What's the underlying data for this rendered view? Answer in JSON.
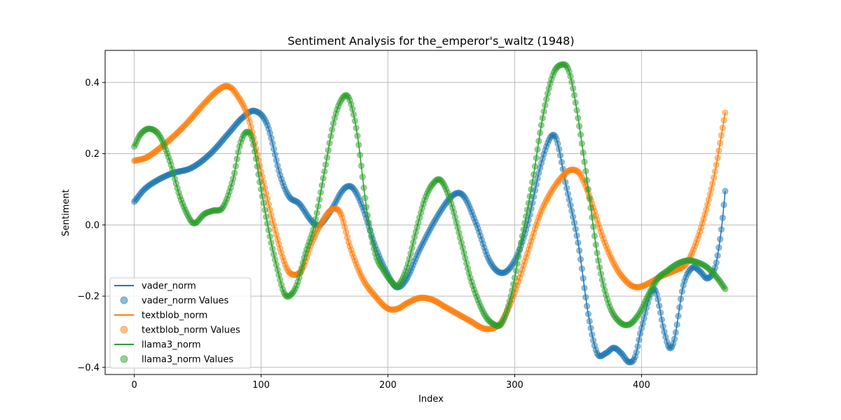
{
  "chart_data": {
    "type": "line",
    "title": "Sentiment Analysis for the_emperor's_waltz (1948)",
    "xlabel": "Index",
    "ylabel": "Sentiment",
    "xlim": [
      -23,
      491
    ],
    "ylim": [
      -0.42,
      0.49
    ],
    "xticks": [
      0,
      100,
      200,
      300,
      400
    ],
    "yticks": [
      -0.4,
      -0.2,
      0.0,
      0.2,
      0.4
    ],
    "xtick_labels": [
      "0",
      "100",
      "200",
      "300",
      "400"
    ],
    "ytick_labels": [
      "−0.4",
      "−0.2",
      "0.0",
      "0.2",
      "0.4"
    ],
    "grid": true,
    "legend_position": "lower-left",
    "x_range": [
      0,
      466
    ],
    "series": [
      {
        "name": "vader_norm",
        "points_label": "vader_norm Values",
        "color": "#1f77b4",
        "keypoints": [
          [
            0,
            0.065
          ],
          [
            8,
            0.1
          ],
          [
            18,
            0.125
          ],
          [
            30,
            0.145
          ],
          [
            45,
            0.16
          ],
          [
            60,
            0.2
          ],
          [
            75,
            0.26
          ],
          [
            85,
            0.3
          ],
          [
            95,
            0.32
          ],
          [
            105,
            0.28
          ],
          [
            115,
            0.14
          ],
          [
            122,
            0.08
          ],
          [
            130,
            0.06
          ],
          [
            140,
            0.01
          ],
          [
            146,
            0.0
          ],
          [
            155,
            0.04
          ],
          [
            165,
            0.1
          ],
          [
            172,
            0.105
          ],
          [
            180,
            0.05
          ],
          [
            190,
            -0.06
          ],
          [
            200,
            -0.14
          ],
          [
            207,
            -0.175
          ],
          [
            215,
            -0.15
          ],
          [
            225,
            -0.07
          ],
          [
            240,
            0.03
          ],
          [
            252,
            0.085
          ],
          [
            260,
            0.08
          ],
          [
            270,
            0.0
          ],
          [
            280,
            -0.1
          ],
          [
            290,
            -0.135
          ],
          [
            300,
            -0.1
          ],
          [
            310,
            0.0
          ],
          [
            320,
            0.16
          ],
          [
            328,
            0.245
          ],
          [
            333,
            0.24
          ],
          [
            340,
            0.12
          ],
          [
            350,
            -0.05
          ],
          [
            358,
            -0.25
          ],
          [
            365,
            -0.36
          ],
          [
            372,
            -0.36
          ],
          [
            378,
            -0.345
          ],
          [
            384,
            -0.36
          ],
          [
            390,
            -0.385
          ],
          [
            395,
            -0.37
          ],
          [
            400,
            -0.29
          ],
          [
            410,
            -0.18
          ],
          [
            418,
            -0.3
          ],
          [
            422,
            -0.345
          ],
          [
            426,
            -0.32
          ],
          [
            433,
            -0.17
          ],
          [
            440,
            -0.12
          ],
          [
            446,
            -0.13
          ],
          [
            452,
            -0.15
          ],
          [
            458,
            -0.12
          ],
          [
            462,
            -0.04
          ],
          [
            464,
            0.02
          ],
          [
            466,
            0.095
          ]
        ]
      },
      {
        "name": "textblob_norm",
        "points_label": "textblob_norm Values",
        "color": "#ff7f0e",
        "keypoints": [
          [
            0,
            0.18
          ],
          [
            10,
            0.19
          ],
          [
            25,
            0.23
          ],
          [
            40,
            0.28
          ],
          [
            55,
            0.34
          ],
          [
            65,
            0.375
          ],
          [
            73,
            0.39
          ],
          [
            80,
            0.37
          ],
          [
            90,
            0.3
          ],
          [
            100,
            0.15
          ],
          [
            110,
            0.0
          ],
          [
            120,
            -0.12
          ],
          [
            127,
            -0.14
          ],
          [
            133,
            -0.12
          ],
          [
            140,
            -0.05
          ],
          [
            150,
            0.02
          ],
          [
            157,
            0.045
          ],
          [
            163,
            0.03
          ],
          [
            170,
            -0.06
          ],
          [
            180,
            -0.15
          ],
          [
            190,
            -0.2
          ],
          [
            200,
            -0.235
          ],
          [
            208,
            -0.235
          ],
          [
            215,
            -0.22
          ],
          [
            225,
            -0.205
          ],
          [
            235,
            -0.21
          ],
          [
            245,
            -0.23
          ],
          [
            255,
            -0.25
          ],
          [
            265,
            -0.27
          ],
          [
            275,
            -0.29
          ],
          [
            283,
            -0.29
          ],
          [
            290,
            -0.27
          ],
          [
            300,
            -0.19
          ],
          [
            310,
            -0.08
          ],
          [
            320,
            0.03
          ],
          [
            330,
            0.1
          ],
          [
            340,
            0.145
          ],
          [
            346,
            0.155
          ],
          [
            352,
            0.14
          ],
          [
            360,
            0.07
          ],
          [
            370,
            -0.04
          ],
          [
            380,
            -0.12
          ],
          [
            390,
            -0.165
          ],
          [
            397,
            -0.175
          ],
          [
            405,
            -0.165
          ],
          [
            415,
            -0.145
          ],
          [
            425,
            -0.13
          ],
          [
            435,
            -0.11
          ],
          [
            442,
            -0.06
          ],
          [
            450,
            0.03
          ],
          [
            458,
            0.15
          ],
          [
            466,
            0.315
          ]
        ]
      },
      {
        "name": "llama3_norm",
        "points_label": "llama3_norm Values",
        "color": "#2ca02c",
        "keypoints": [
          [
            0,
            0.22
          ],
          [
            5,
            0.255
          ],
          [
            12,
            0.27
          ],
          [
            20,
            0.25
          ],
          [
            28,
            0.18
          ],
          [
            36,
            0.08
          ],
          [
            44,
            0.015
          ],
          [
            48,
            0.005
          ],
          [
            55,
            0.03
          ],
          [
            62,
            0.04
          ],
          [
            70,
            0.05
          ],
          [
            78,
            0.13
          ],
          [
            83,
            0.22
          ],
          [
            88,
            0.26
          ],
          [
            93,
            0.24
          ],
          [
            100,
            0.1
          ],
          [
            108,
            -0.05
          ],
          [
            114,
            -0.14
          ],
          [
            118,
            -0.19
          ],
          [
            122,
            -0.2
          ],
          [
            128,
            -0.17
          ],
          [
            135,
            -0.08
          ],
          [
            142,
            0.0
          ],
          [
            150,
            0.15
          ],
          [
            158,
            0.3
          ],
          [
            165,
            0.36
          ],
          [
            170,
            0.35
          ],
          [
            176,
            0.25
          ],
          [
            183,
            0.05
          ],
          [
            190,
            -0.08
          ],
          [
            197,
            -0.13
          ],
          [
            203,
            -0.16
          ],
          [
            208,
            -0.17
          ],
          [
            215,
            -0.12
          ],
          [
            222,
            -0.02
          ],
          [
            230,
            0.08
          ],
          [
            238,
            0.125
          ],
          [
            243,
            0.12
          ],
          [
            250,
            0.06
          ],
          [
            258,
            -0.05
          ],
          [
            266,
            -0.16
          ],
          [
            276,
            -0.25
          ],
          [
            284,
            -0.28
          ],
          [
            290,
            -0.275
          ],
          [
            297,
            -0.2
          ],
          [
            305,
            -0.05
          ],
          [
            314,
            0.12
          ],
          [
            322,
            0.3
          ],
          [
            330,
            0.42
          ],
          [
            337,
            0.45
          ],
          [
            343,
            0.43
          ],
          [
            350,
            0.3
          ],
          [
            358,
            0.1
          ],
          [
            366,
            -0.1
          ],
          [
            374,
            -0.22
          ],
          [
            382,
            -0.27
          ],
          [
            390,
            -0.28
          ],
          [
            398,
            -0.25
          ],
          [
            405,
            -0.2
          ],
          [
            413,
            -0.15
          ],
          [
            420,
            -0.13
          ],
          [
            428,
            -0.11
          ],
          [
            436,
            -0.1
          ],
          [
            444,
            -0.105
          ],
          [
            452,
            -0.12
          ],
          [
            460,
            -0.15
          ],
          [
            466,
            -0.18
          ]
        ]
      }
    ]
  }
}
